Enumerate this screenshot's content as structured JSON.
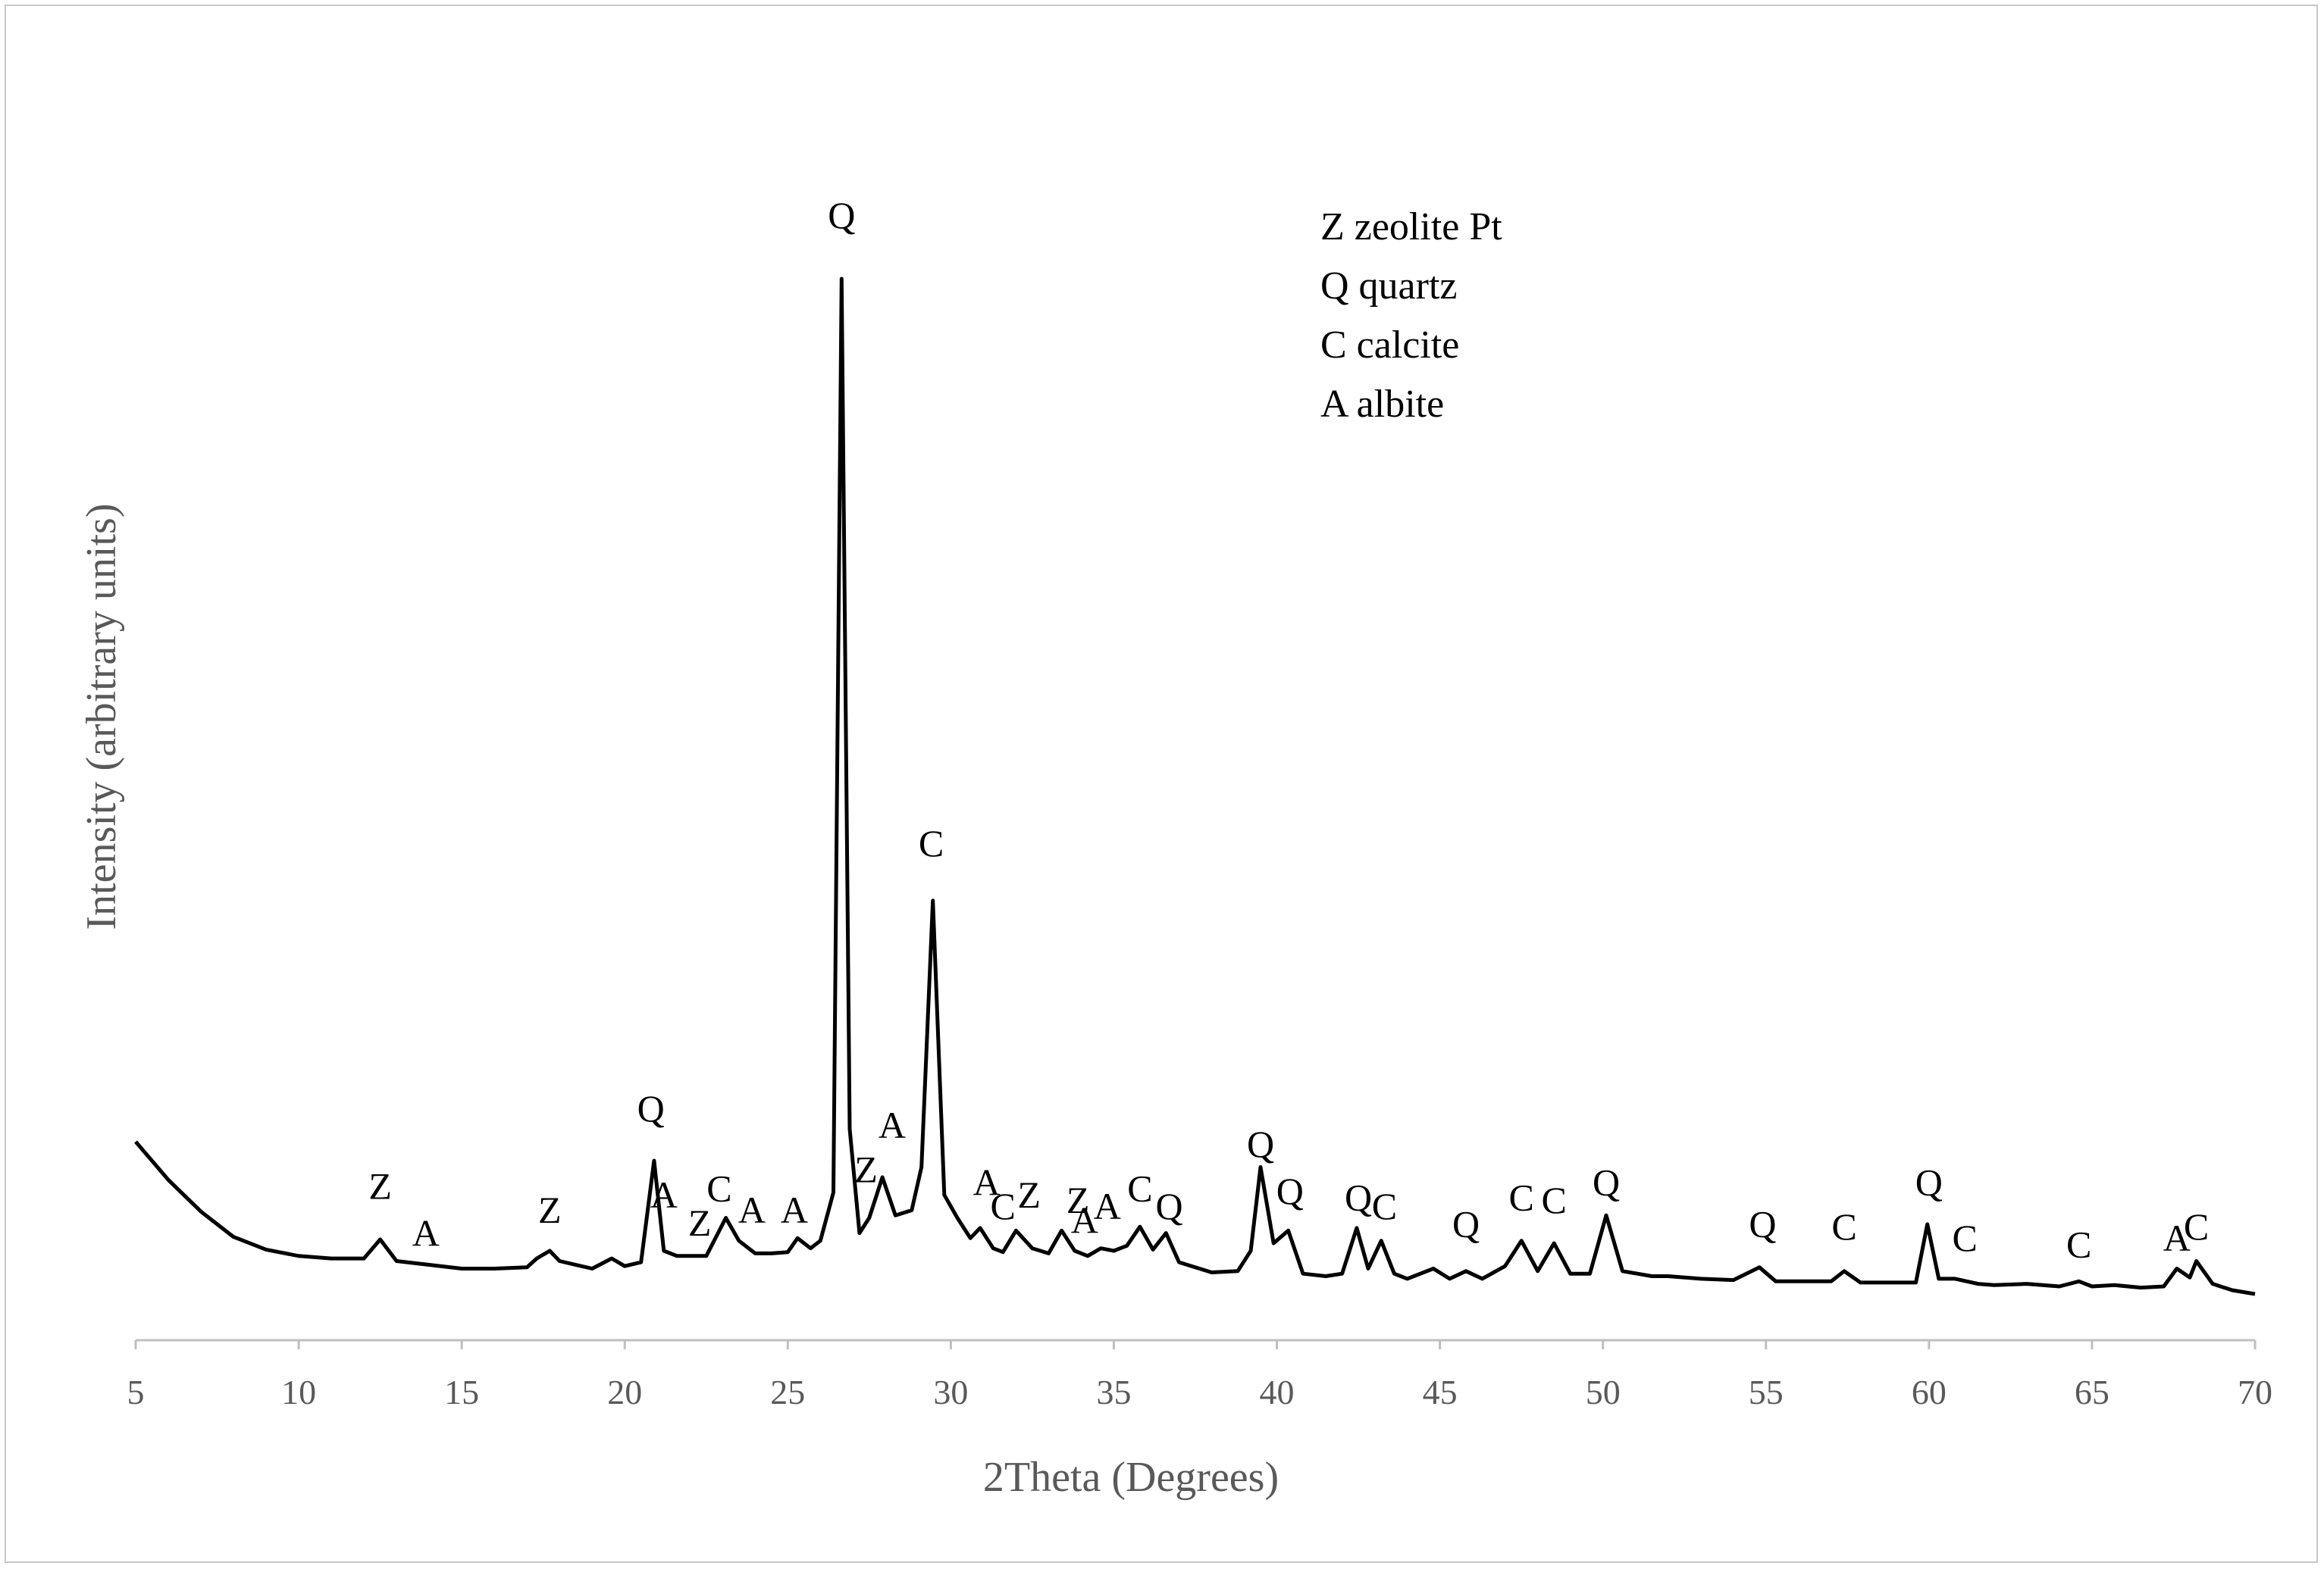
{
  "chart_data": {
    "type": "line",
    "title": "",
    "xlabel": "2Theta (Degrees)",
    "ylabel": "Intensity (arbitrary units)",
    "xlim": [
      5,
      70
    ],
    "ylim": [
      0,
      100
    ],
    "x_ticks": [
      5,
      10,
      15,
      20,
      25,
      30,
      35,
      40,
      45,
      50,
      55,
      60,
      65,
      70
    ],
    "y_ticks_shown": false,
    "grid": false,
    "line_color": "#000000",
    "series": [
      {
        "x": [
          5,
          6,
          7,
          8,
          9,
          10,
          11,
          12,
          12.5,
          13,
          14,
          15,
          16,
          17,
          17.3,
          17.7,
          18,
          19,
          19.6,
          20,
          20.5,
          20.9,
          21.2,
          21.6,
          22,
          22.5,
          23.1,
          23.5,
          24,
          24.5,
          25,
          25.3,
          25.7,
          26,
          26.4,
          26.65,
          26.9,
          27.2,
          27.5,
          27.9,
          28.3,
          28.8,
          29.1,
          29.45,
          29.8,
          30.2,
          30.6,
          30.9,
          31.3,
          31.6,
          32,
          32.5,
          33,
          33.4,
          33.8,
          34.2,
          34.6,
          35,
          35.4,
          35.8,
          36.2,
          36.6,
          37,
          38,
          38.8,
          39.2,
          39.5,
          39.9,
          40.35,
          40.8,
          41.5,
          42,
          42.45,
          42.8,
          43.2,
          43.6,
          44,
          44.8,
          45.3,
          45.8,
          46.3,
          47,
          47.5,
          48,
          48.5,
          49,
          49.6,
          50.1,
          50.6,
          51.5,
          52,
          53,
          54,
          54.8,
          55.3,
          56,
          57,
          57.4,
          57.9,
          59,
          59.6,
          59.95,
          60.3,
          60.8,
          61.5,
          62,
          63,
          64,
          64.6,
          65,
          65.7,
          66.5,
          67.2,
          67.6,
          68,
          68.2,
          68.7,
          69.3,
          70
        ],
        "y": [
          12,
          9,
          6.5,
          4.5,
          3.5,
          3,
          2.8,
          2.8,
          4.3,
          2.6,
          2.3,
          2,
          2,
          2.1,
          2.8,
          3.4,
          2.6,
          2,
          2.8,
          2.2,
          2.5,
          10.5,
          3.4,
          3,
          3,
          3,
          6,
          4.2,
          3.2,
          3.2,
          3.3,
          4.4,
          3.6,
          4.2,
          8,
          80,
          13,
          4.8,
          6,
          9.2,
          6.2,
          6.6,
          10,
          31,
          7.8,
          6,
          4.4,
          5.2,
          3.6,
          3.3,
          5,
          3.6,
          3.2,
          5,
          3.4,
          3,
          3.6,
          3.4,
          3.8,
          5.3,
          3.5,
          4.8,
          2.5,
          1.7,
          1.8,
          3.4,
          10,
          4,
          5,
          1.6,
          1.4,
          1.6,
          5.2,
          2,
          4.2,
          1.6,
          1.2,
          2,
          1.2,
          1.8,
          1.2,
          2.2,
          4.2,
          1.8,
          4,
          1.6,
          1.6,
          6.2,
          1.8,
          1.4,
          1.4,
          1.2,
          1.1,
          2.1,
          1,
          1,
          1,
          1.8,
          0.9,
          0.9,
          0.9,
          5.5,
          1.2,
          1.2,
          0.8,
          0.7,
          0.8,
          0.6,
          1,
          0.6,
          0.7,
          0.5,
          0.6,
          2,
          1.3,
          2.6,
          0.8,
          0.3,
          0
        ]
      }
    ],
    "annotations": [
      {
        "text": "Z",
        "x": 12.5,
        "y": 7.5
      },
      {
        "text": "A",
        "x": 13.9,
        "y": 3.8
      },
      {
        "text": "Z",
        "x": 17.7,
        "y": 5.6
      },
      {
        "text": "Q",
        "x": 20.8,
        "y": 13.6
      },
      {
        "text": "A",
        "x": 21.2,
        "y": 6.8
      },
      {
        "text": "Z",
        "x": 22.3,
        "y": 4.6
      },
      {
        "text": "C",
        "x": 22.9,
        "y": 7.3
      },
      {
        "text": "A",
        "x": 23.9,
        "y": 5.6
      },
      {
        "text": "A",
        "x": 25.2,
        "y": 5.6
      },
      {
        "text": "Q",
        "x": 26.65,
        "y": 84
      },
      {
        "text": "Z",
        "x": 27.4,
        "y": 8.8
      },
      {
        "text": "A",
        "x": 28.2,
        "y": 12.3
      },
      {
        "text": "C",
        "x": 29.4,
        "y": 34.5
      },
      {
        "text": "A",
        "x": 31.1,
        "y": 7.8
      },
      {
        "text": "C",
        "x": 31.6,
        "y": 5.9
      },
      {
        "text": "Z",
        "x": 32.4,
        "y": 6.8
      },
      {
        "text": "Z",
        "x": 33.9,
        "y": 6.4
      },
      {
        "text": "A",
        "x": 34.1,
        "y": 4.8
      },
      {
        "text": "A",
        "x": 34.8,
        "y": 5.9
      },
      {
        "text": "C",
        "x": 35.8,
        "y": 7.3
      },
      {
        "text": "Q",
        "x": 36.7,
        "y": 5.9
      },
      {
        "text": "Q",
        "x": 39.5,
        "y": 10.8
      },
      {
        "text": "Q",
        "x": 40.4,
        "y": 7.1
      },
      {
        "text": "Q",
        "x": 42.5,
        "y": 6.6
      },
      {
        "text": "C",
        "x": 43.3,
        "y": 5.9
      },
      {
        "text": "Q",
        "x": 45.8,
        "y": 4.5
      },
      {
        "text": "C",
        "x": 47.5,
        "y": 6.6
      },
      {
        "text": "C",
        "x": 48.5,
        "y": 6.4
      },
      {
        "text": "Q",
        "x": 50.1,
        "y": 7.8
      },
      {
        "text": "Q",
        "x": 54.9,
        "y": 4.5
      },
      {
        "text": "C",
        "x": 57.4,
        "y": 4.3
      },
      {
        "text": "Q",
        "x": 60,
        "y": 7.8
      },
      {
        "text": "C",
        "x": 61.1,
        "y": 3.4
      },
      {
        "text": "C",
        "x": 64.6,
        "y": 2.9
      },
      {
        "text": "A",
        "x": 67.6,
        "y": 3.4
      },
      {
        "text": "C",
        "x": 68.2,
        "y": 4.3
      }
    ],
    "legend": {
      "placement": "top-right",
      "entries": [
        "Z zeolite Pt",
        "Q quartz",
        "C calcite",
        "A albite"
      ]
    }
  }
}
